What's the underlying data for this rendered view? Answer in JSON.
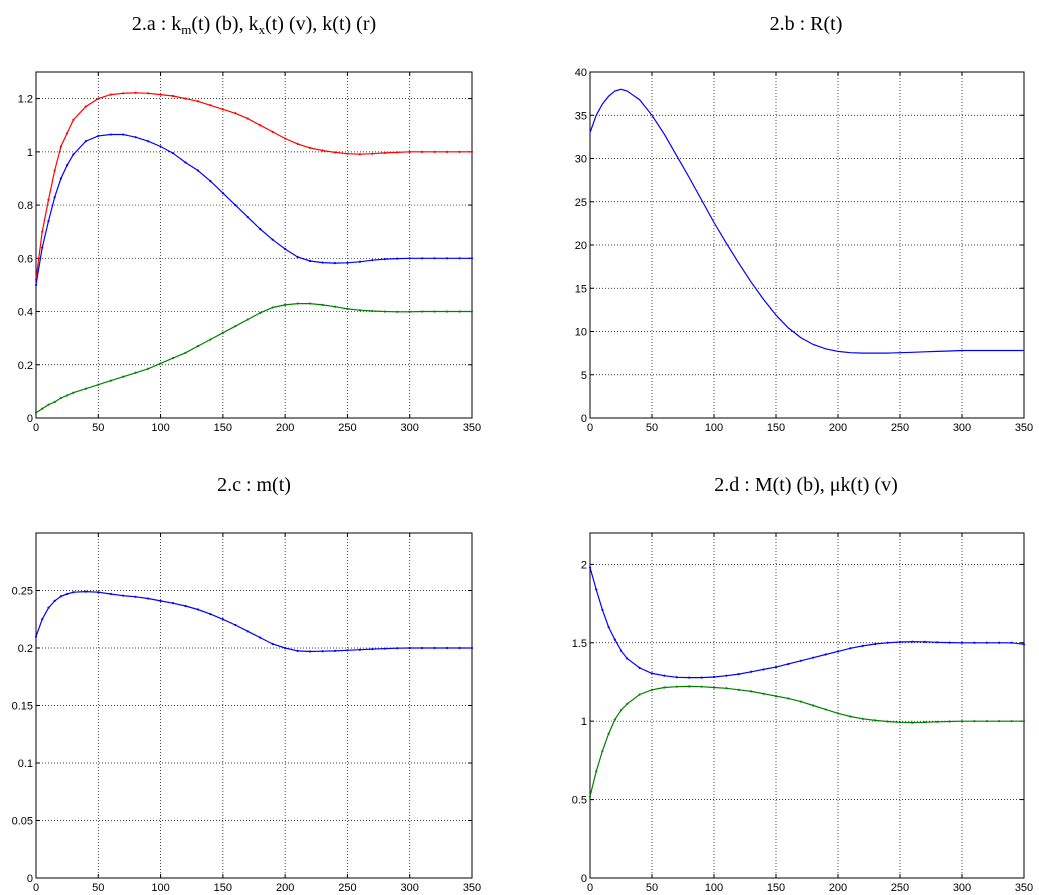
{
  "figure": {
    "panels": [
      {
        "id": "a",
        "title": {
          "prefix": "2.a : k",
          "parts": [
            {
              "t": "k",
              "plain": true
            },
            {
              "t": "m",
              "sub": true
            },
            {
              "t": "(t) (b), k"
            },
            {
              "t": "x",
              "sub": true
            },
            {
              "t": "(t) (v), k(t) (r)"
            }
          ]
        }
      },
      {
        "id": "b",
        "title": {
          "parts": [
            {
              "t": "2.b : R(t)"
            }
          ]
        }
      },
      {
        "id": "c",
        "title": {
          "parts": [
            {
              "t": "2.c : m(t)"
            }
          ]
        }
      },
      {
        "id": "d",
        "title": {
          "parts": [
            {
              "t": "2.d : M(t) (b), μk(t) (v)"
            }
          ]
        }
      }
    ]
  },
  "chart_data": [
    {
      "type": "line",
      "title": "2.a : km(t) (b), kx(t) (v), k(t) (r)",
      "xlim": [
        0,
        350
      ],
      "ylim": [
        0,
        1.3
      ],
      "xticks": [
        0,
        50,
        100,
        150,
        200,
        250,
        300,
        350
      ],
      "yticks": [
        0,
        0.2,
        0.4,
        0.6,
        0.8,
        1,
        1.2
      ],
      "ytick_labels": [
        "0",
        "0.2",
        "0.4",
        "0.6",
        "0.8",
        "1",
        "1.2"
      ],
      "grid": true,
      "series": [
        {
          "color": "#ff0000",
          "markers": true,
          "x": [
            0,
            5,
            10,
            15,
            20,
            25,
            30,
            40,
            50,
            60,
            70,
            80,
            90,
            100,
            110,
            120,
            130,
            140,
            150,
            160,
            170,
            180,
            190,
            200,
            210,
            220,
            230,
            240,
            250,
            260,
            270,
            280,
            290,
            300,
            310,
            320,
            330,
            340,
            350
          ],
          "y": [
            0.52,
            0.7,
            0.82,
            0.93,
            1.02,
            1.07,
            1.12,
            1.17,
            1.2,
            1.215,
            1.22,
            1.222,
            1.22,
            1.215,
            1.21,
            1.2,
            1.19,
            1.175,
            1.16,
            1.145,
            1.125,
            1.1,
            1.075,
            1.05,
            1.03,
            1.015,
            1.005,
            0.998,
            0.993,
            0.991,
            0.993,
            0.996,
            0.998,
            1.0,
            1.0,
            1.0,
            1.0,
            1.0,
            1.0
          ]
        },
        {
          "color": "#0000ff",
          "markers": true,
          "x": [
            0,
            5,
            10,
            15,
            20,
            25,
            30,
            40,
            50,
            60,
            70,
            80,
            90,
            100,
            110,
            120,
            130,
            140,
            150,
            160,
            170,
            180,
            190,
            200,
            210,
            220,
            230,
            240,
            250,
            260,
            270,
            280,
            290,
            300,
            310,
            320,
            330,
            340,
            350
          ],
          "y": [
            0.5,
            0.64,
            0.74,
            0.83,
            0.9,
            0.95,
            0.99,
            1.04,
            1.06,
            1.065,
            1.065,
            1.055,
            1.04,
            1.02,
            0.995,
            0.96,
            0.93,
            0.89,
            0.845,
            0.8,
            0.755,
            0.71,
            0.67,
            0.635,
            0.605,
            0.59,
            0.584,
            0.582,
            0.583,
            0.587,
            0.593,
            0.597,
            0.599,
            0.6,
            0.6,
            0.6,
            0.6,
            0.6,
            0.6
          ]
        },
        {
          "color": "#008000",
          "markers": true,
          "x": [
            0,
            5,
            10,
            15,
            20,
            25,
            30,
            40,
            50,
            60,
            70,
            80,
            90,
            100,
            110,
            120,
            130,
            140,
            150,
            160,
            170,
            180,
            190,
            200,
            210,
            220,
            230,
            240,
            250,
            260,
            270,
            280,
            290,
            300,
            310,
            320,
            330,
            340,
            350
          ],
          "y": [
            0.02,
            0.035,
            0.05,
            0.06,
            0.075,
            0.085,
            0.095,
            0.11,
            0.125,
            0.14,
            0.155,
            0.17,
            0.185,
            0.205,
            0.225,
            0.245,
            0.27,
            0.295,
            0.32,
            0.345,
            0.37,
            0.395,
            0.415,
            0.425,
            0.43,
            0.43,
            0.425,
            0.418,
            0.41,
            0.405,
            0.402,
            0.4,
            0.399,
            0.399,
            0.4,
            0.4,
            0.4,
            0.4,
            0.4
          ]
        }
      ]
    },
    {
      "type": "line",
      "title": "2.b : R(t)",
      "xlim": [
        0,
        350
      ],
      "ylim": [
        0,
        40
      ],
      "xticks": [
        0,
        50,
        100,
        150,
        200,
        250,
        300,
        350
      ],
      "yticks": [
        0,
        5,
        10,
        15,
        20,
        25,
        30,
        35,
        40
      ],
      "ytick_labels": [
        "0",
        "5",
        "10",
        "15",
        "20",
        "25",
        "30",
        "35",
        "40"
      ],
      "grid": true,
      "series": [
        {
          "color": "#0000ff",
          "markers": false,
          "x": [
            0,
            5,
            10,
            15,
            20,
            25,
            30,
            40,
            50,
            60,
            70,
            80,
            90,
            100,
            110,
            120,
            130,
            140,
            150,
            160,
            170,
            180,
            190,
            200,
            210,
            220,
            230,
            240,
            250,
            260,
            270,
            280,
            290,
            300,
            310,
            320,
            330,
            340,
            350
          ],
          "y": [
            33.0,
            35.0,
            36.3,
            37.2,
            37.8,
            38.0,
            37.8,
            36.8,
            35.0,
            32.8,
            30.3,
            27.8,
            25.2,
            22.6,
            20.2,
            17.9,
            15.7,
            13.7,
            11.9,
            10.4,
            9.3,
            8.5,
            8.0,
            7.7,
            7.55,
            7.5,
            7.5,
            7.5,
            7.55,
            7.6,
            7.65,
            7.7,
            7.75,
            7.8,
            7.8,
            7.8,
            7.8,
            7.8,
            7.8
          ]
        }
      ]
    },
    {
      "type": "line",
      "title": "2.c : m(t)",
      "xlim": [
        0,
        350
      ],
      "ylim": [
        0,
        0.3
      ],
      "xticks": [
        0,
        50,
        100,
        150,
        200,
        250,
        300,
        350
      ],
      "yticks": [
        0,
        0.05,
        0.1,
        0.15,
        0.2,
        0.25
      ],
      "ytick_labels": [
        "0",
        "0.05",
        "0.1",
        "0.15",
        "0.2",
        "0.25"
      ],
      "grid": true,
      "series": [
        {
          "color": "#0000ff",
          "markers": true,
          "x": [
            0,
            5,
            10,
            15,
            20,
            25,
            30,
            40,
            50,
            60,
            70,
            80,
            90,
            100,
            110,
            120,
            130,
            140,
            150,
            160,
            170,
            180,
            190,
            200,
            210,
            220,
            230,
            240,
            250,
            260,
            270,
            280,
            290,
            300,
            310,
            320,
            330,
            340,
            350
          ],
          "y": [
            0.21,
            0.225,
            0.235,
            0.241,
            0.245,
            0.247,
            0.2485,
            0.249,
            0.2485,
            0.247,
            0.2455,
            0.2445,
            0.243,
            0.241,
            0.239,
            0.2365,
            0.2335,
            0.2295,
            0.225,
            0.22,
            0.2145,
            0.209,
            0.2035,
            0.2,
            0.1975,
            0.197,
            0.1972,
            0.1975,
            0.198,
            0.1985,
            0.199,
            0.1995,
            0.1998,
            0.2,
            0.2,
            0.2,
            0.2,
            0.2,
            0.2
          ]
        }
      ]
    },
    {
      "type": "line",
      "title": "2.d : M(t) (b), μk(t) (v)",
      "xlim": [
        0,
        350
      ],
      "ylim": [
        0,
        2.2
      ],
      "xticks": [
        0,
        50,
        100,
        150,
        200,
        250,
        300,
        350
      ],
      "yticks": [
        0,
        0.5,
        1,
        1.5,
        2
      ],
      "ytick_labels": [
        "0",
        "0.5",
        "1",
        "1.5",
        "2"
      ],
      "grid": true,
      "series": [
        {
          "color": "#0000ff",
          "markers": true,
          "x": [
            0,
            5,
            10,
            15,
            20,
            25,
            30,
            40,
            50,
            60,
            70,
            80,
            90,
            100,
            110,
            120,
            130,
            140,
            150,
            160,
            170,
            180,
            190,
            200,
            210,
            220,
            230,
            240,
            250,
            260,
            270,
            280,
            290,
            300,
            310,
            320,
            330,
            340,
            350
          ],
          "y": [
            1.98,
            1.84,
            1.71,
            1.6,
            1.52,
            1.45,
            1.4,
            1.34,
            1.305,
            1.29,
            1.28,
            1.278,
            1.278,
            1.282,
            1.29,
            1.3,
            1.315,
            1.33,
            1.345,
            1.365,
            1.385,
            1.405,
            1.425,
            1.445,
            1.465,
            1.48,
            1.492,
            1.5,
            1.505,
            1.507,
            1.506,
            1.503,
            1.501,
            1.5,
            1.5,
            1.5,
            1.5,
            1.5,
            1.49
          ]
        },
        {
          "color": "#008000",
          "markers": true,
          "x": [
            0,
            5,
            10,
            15,
            20,
            25,
            30,
            40,
            50,
            60,
            70,
            80,
            90,
            100,
            110,
            120,
            130,
            140,
            150,
            160,
            170,
            180,
            190,
            200,
            210,
            220,
            230,
            240,
            250,
            260,
            270,
            280,
            290,
            300,
            310,
            320,
            330,
            340,
            350
          ],
          "y": [
            0.52,
            0.68,
            0.81,
            0.92,
            1.01,
            1.07,
            1.11,
            1.17,
            1.2,
            1.215,
            1.22,
            1.222,
            1.22,
            1.215,
            1.21,
            1.2,
            1.19,
            1.175,
            1.16,
            1.145,
            1.125,
            1.1,
            1.075,
            1.05,
            1.03,
            1.015,
            1.005,
            0.998,
            0.993,
            0.991,
            0.993,
            0.996,
            0.998,
            1.0,
            1.0,
            1.0,
            1.0,
            1.0,
            1.0
          ]
        }
      ]
    }
  ]
}
